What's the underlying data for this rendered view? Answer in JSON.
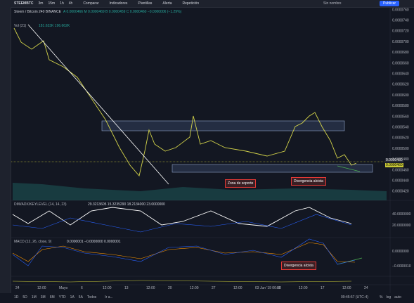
{
  "toolbar": {
    "symbol": "STEEMBTC",
    "intervals": [
      "3m",
      "15m",
      "1h",
      "4h"
    ],
    "buttons": [
      "Comparar",
      "Indicadores",
      "Plantillas",
      "Alerta",
      "Repetición"
    ],
    "layout_name": "Sin nombre",
    "publish": "Publicar"
  },
  "legend": {
    "title": "Steem / Bitcoin  240  BINANCE",
    "ohlc": "A 0.0000466  M 0.0000469  B 0.0000459  C 0.0000460  −0.0000006 (−1.29%)",
    "volume": "Vol (21)",
    "volume_values": "181.633K  196.662K"
  },
  "price_axis": [
    "0.0000760",
    "0.0000740",
    "0.0000720",
    "0.0000700",
    "0.0000680",
    "0.0000660",
    "0.0000640",
    "0.0000620",
    "0.0000600",
    "0.0000580",
    "0.0000560",
    "0.0000540",
    "0.0000520",
    "0.0000500",
    "0.0000480",
    "0.0000460",
    "0.0000440",
    "0.0000420"
  ],
  "price_tags": [
    "0.0000480",
    "0.0000460"
  ],
  "annotations": [
    "Zona de soporte",
    "Divergencia alcista",
    "Divergencia alcista"
  ],
  "dmi": {
    "title": "DMI/ADX/KEYLEVEL (14, 14, 23)",
    "values": "29.3213605  15.3235290  18.2134000  23.0000000",
    "axis": [
      "40.0000000",
      "20.0000000"
    ]
  },
  "macd": {
    "title": "MACD (12, 26, close, 9)",
    "values": "0.0000001  −0.0000000  0.0000001",
    "axis": [
      "0.0000000",
      "−0.0000010"
    ]
  },
  "time_axis": [
    "24",
    "12:00",
    "Mayo",
    "6",
    "12:00",
    "13",
    "12:00",
    "20",
    "12:00",
    "27",
    "12:00",
    "03 Jun '19  00:00",
    "10",
    "12:00",
    "17",
    "12:00",
    "24"
  ],
  "bottom": {
    "ranges": [
      "1D",
      "5D",
      "1M",
      "3M",
      "6M",
      "YTD",
      "1A",
      "5A",
      "Todos"
    ],
    "goto": "Ir a...",
    "clock": "09:45:57 (UTC-4)",
    "options": [
      "%",
      "log",
      "auto"
    ]
  }
}
